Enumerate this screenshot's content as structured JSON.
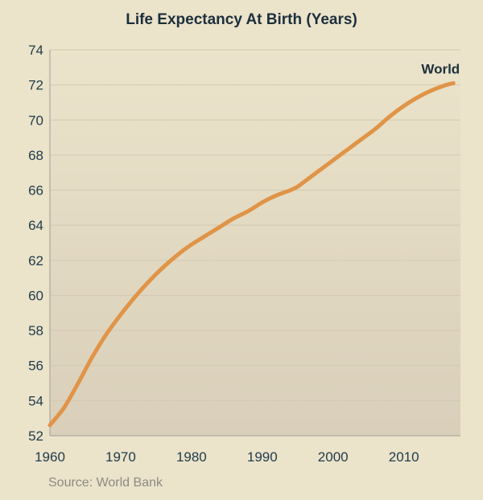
{
  "chart_data": {
    "type": "line",
    "title": "Life Expectancy At Birth (Years)",
    "xlabel": "",
    "ylabel": "",
    "xlim": [
      1960,
      2018
    ],
    "ylim": [
      52,
      74
    ],
    "x_ticks": [
      1960,
      1970,
      1980,
      1990,
      2000,
      2010
    ],
    "y_ticks": [
      52,
      54,
      56,
      58,
      60,
      62,
      64,
      66,
      68,
      70,
      72,
      74
    ],
    "grid": true,
    "series": [
      {
        "name": "World",
        "color": "#e09447",
        "x": [
          1960,
          1962,
          1964,
          1966,
          1968,
          1970,
          1972,
          1974,
          1976,
          1978,
          1980,
          1982,
          1984,
          1986,
          1988,
          1990,
          1992,
          1994,
          1995,
          1996,
          1998,
          2000,
          2002,
          2004,
          2006,
          2008,
          2010,
          2012,
          2014,
          2016,
          2017
        ],
        "values": [
          52.6,
          53.6,
          55.0,
          56.5,
          57.8,
          58.9,
          59.9,
          60.8,
          61.6,
          62.3,
          62.9,
          63.4,
          63.9,
          64.4,
          64.8,
          65.3,
          65.7,
          66.0,
          66.2,
          66.5,
          67.1,
          67.7,
          68.3,
          68.9,
          69.5,
          70.2,
          70.8,
          71.3,
          71.7,
          72.0,
          72.1
        ]
      }
    ]
  },
  "source": "Source: World Bank",
  "colors": {
    "background_top": "#ebe3ca",
    "background_bottom": "#d9cfba",
    "line": "#e09447",
    "text": "#1c2f3c"
  }
}
